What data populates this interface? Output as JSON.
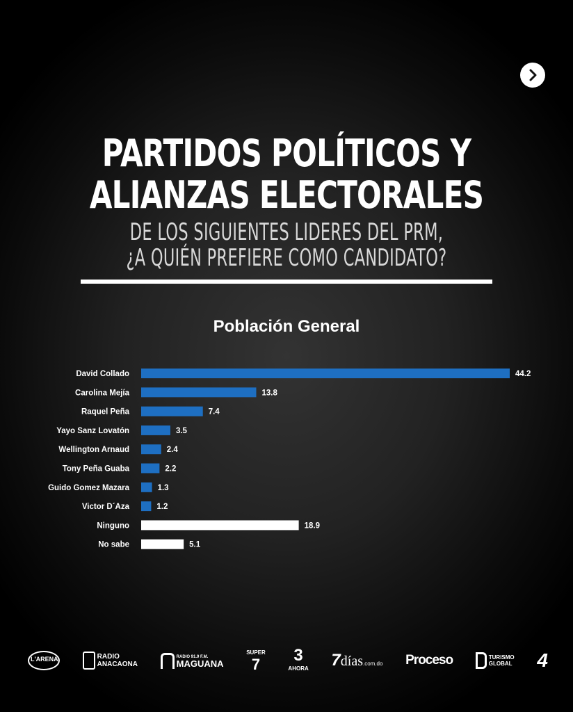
{
  "header": {
    "title_line1": "PARTIDOS POLÍTICOS Y",
    "title_line2": "ALIANZAS ELECTORALES",
    "subtitle_line1": "DE LOS SIGUIENTES LIDERES DEL PRM,",
    "subtitle_line2": "¿A QUIÉN PREFIERE COMO CANDIDATO?",
    "next_icon": "chevron-right-icon"
  },
  "chart_data": {
    "type": "bar",
    "orientation": "horizontal",
    "title": "Población General",
    "categories": [
      "David Collado",
      "Carolina Mejía",
      "Raquel Peña",
      "Yayo Sanz Lovatón",
      "Wellington Arnaud",
      "Tony Peña Guaba",
      "Guido Gomez Mazara",
      "Victor D´Aza",
      "Ninguno",
      "No sabe"
    ],
    "values": [
      44.2,
      13.8,
      7.4,
      3.5,
      2.4,
      2.2,
      1.3,
      1.2,
      18.9,
      5.1
    ],
    "value_labels": [
      "44.2",
      "13.8",
      "7.4",
      "3.5",
      "2.4",
      "2.2",
      "1.3",
      "1.2",
      "18.9",
      "5.1"
    ],
    "bar_colors": [
      "#1e6fc2",
      "#1e6fc2",
      "#1e6fc2",
      "#1e6fc2",
      "#1e6fc2",
      "#1e6fc2",
      "#1e6fc2",
      "#1e6fc2",
      "#ffffff",
      "#ffffff"
    ],
    "xlim": [
      0,
      44.2
    ],
    "grid": false,
    "legend": "none"
  },
  "footer": {
    "logos": {
      "larena": "L'ARENA",
      "anacaona_line1": "RADIO",
      "anacaona_line2": "ANACAONA",
      "maguana_line1": "RADIO 91.9 F.M.",
      "maguana_line2": "MAGUANA",
      "super7_line1": "SUPER",
      "super7_line2": "7",
      "ahora_line1": "3",
      "ahora_line2": "AHORA",
      "sietedias_num": "7",
      "sietedias_word": "días",
      "sietedias_dom": ".com.do",
      "proceso": "Proceso",
      "turismo_line1": "TURISMO",
      "turismo_line2": "GLOBAL",
      "canal": "4"
    }
  }
}
